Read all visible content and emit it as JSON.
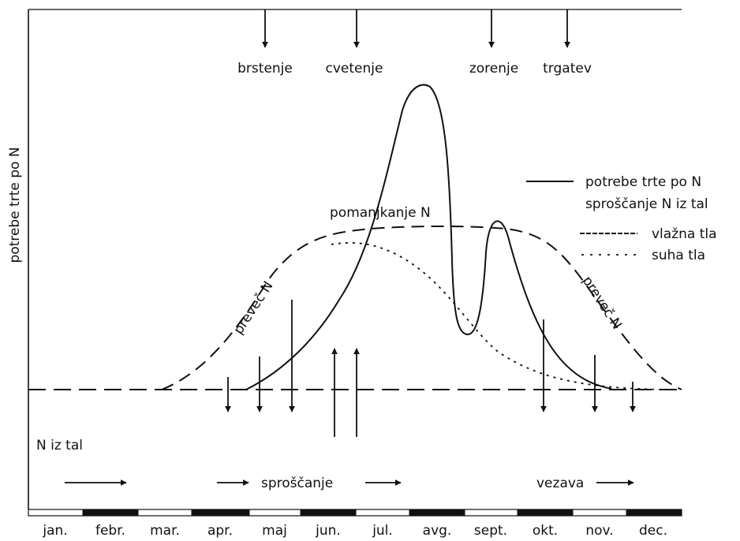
{
  "y_axis_label": "potrebe trte po N",
  "stages": [
    "brstenje",
    "cvetenje",
    "zorenje",
    "trgatev"
  ],
  "legend": {
    "line1": "potrebe trte po N",
    "line2": "sproščanje N iz tal",
    "line3": "vlažna tla",
    "line4": "suha tla"
  },
  "annotations": {
    "deficit": "pomanjkanje N",
    "excess_left": "preveč N",
    "excess_right": "preveč N",
    "soil": "N iz tal",
    "release": "sproščanje",
    "binding": "vezava"
  },
  "months": [
    "jan.",
    "febr.",
    "mar.",
    "apr.",
    "maj",
    "jun.",
    "jul.",
    "avg.",
    "sept.",
    "okt.",
    "nov.",
    "dec."
  ]
}
